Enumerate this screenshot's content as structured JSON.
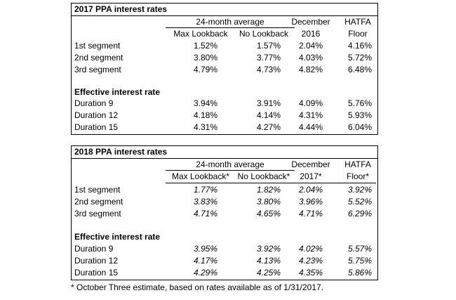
{
  "table2017": {
    "title": "2017 PPA interest rates",
    "group_header": "24-month average",
    "col_headers": {
      "max_lookback": "Max Lookback",
      "no_lookback": "No Lookback",
      "december_line1": "December",
      "december_line2": "2016",
      "hatfa_line1": "HATFA",
      "hatfa_line2": "Floor"
    },
    "segments": [
      {
        "label": "1st segment",
        "max": "1.52%",
        "no": "1.57%",
        "dec": "2.04%",
        "hatfa": "4.16%"
      },
      {
        "label": "2nd segment",
        "max": "3.80%",
        "no": "3.77%",
        "dec": "4.03%",
        "hatfa": "5.72%"
      },
      {
        "label": "3rd segment",
        "max": "4.79%",
        "no": "4.73%",
        "dec": "4.82%",
        "hatfa": "6.48%"
      }
    ],
    "effective_label": "Effective interest rate",
    "durations": [
      {
        "label": "Duration 9",
        "max": "3.94%",
        "no": "3.91%",
        "dec": "4.09%",
        "hatfa": "5.76%"
      },
      {
        "label": "Duration 12",
        "max": "4.18%",
        "no": "4.14%",
        "dec": "4.31%",
        "hatfa": "5.93%"
      },
      {
        "label": "Duration 15",
        "max": "4.31%",
        "no": "4.27%",
        "dec": "4.44%",
        "hatfa": "6.04%"
      }
    ]
  },
  "table2018": {
    "title": "2018 PPA interest rates",
    "group_header": "24-month average",
    "col_headers": {
      "max_lookback": "Max Lookback*",
      "no_lookback": "No Lookback*",
      "december_line1": "December",
      "december_line2": "2017*",
      "hatfa_line1": "HATFA",
      "hatfa_line2": "Floor*"
    },
    "segments": [
      {
        "label": "1st segment",
        "max": "1.77%",
        "no": "1.82%",
        "dec": "2.04%",
        "hatfa": "3.92%"
      },
      {
        "label": "2nd segment",
        "max": "3.83%",
        "no": "3.80%",
        "dec": "3.96%",
        "hatfa": "5.52%"
      },
      {
        "label": "3rd segment",
        "max": "4.71%",
        "no": "4.65%",
        "dec": "4.71%",
        "hatfa": "6.29%"
      }
    ],
    "effective_label": "Effective interest rate",
    "durations": [
      {
        "label": "Duration 9",
        "max": "3.95%",
        "no": "3.92%",
        "dec": "4.02%",
        "hatfa": "5.57%"
      },
      {
        "label": "Duration 12",
        "max": "4.17%",
        "no": "4.13%",
        "dec": "4.23%",
        "hatfa": "5.75%"
      },
      {
        "label": "Duration 15",
        "max": "4.29%",
        "no": "4.25%",
        "dec": "4.35%",
        "hatfa": "5.86%"
      }
    ]
  },
  "footnote": "* October Three estimate, based on rates available as of 1/31/2017."
}
